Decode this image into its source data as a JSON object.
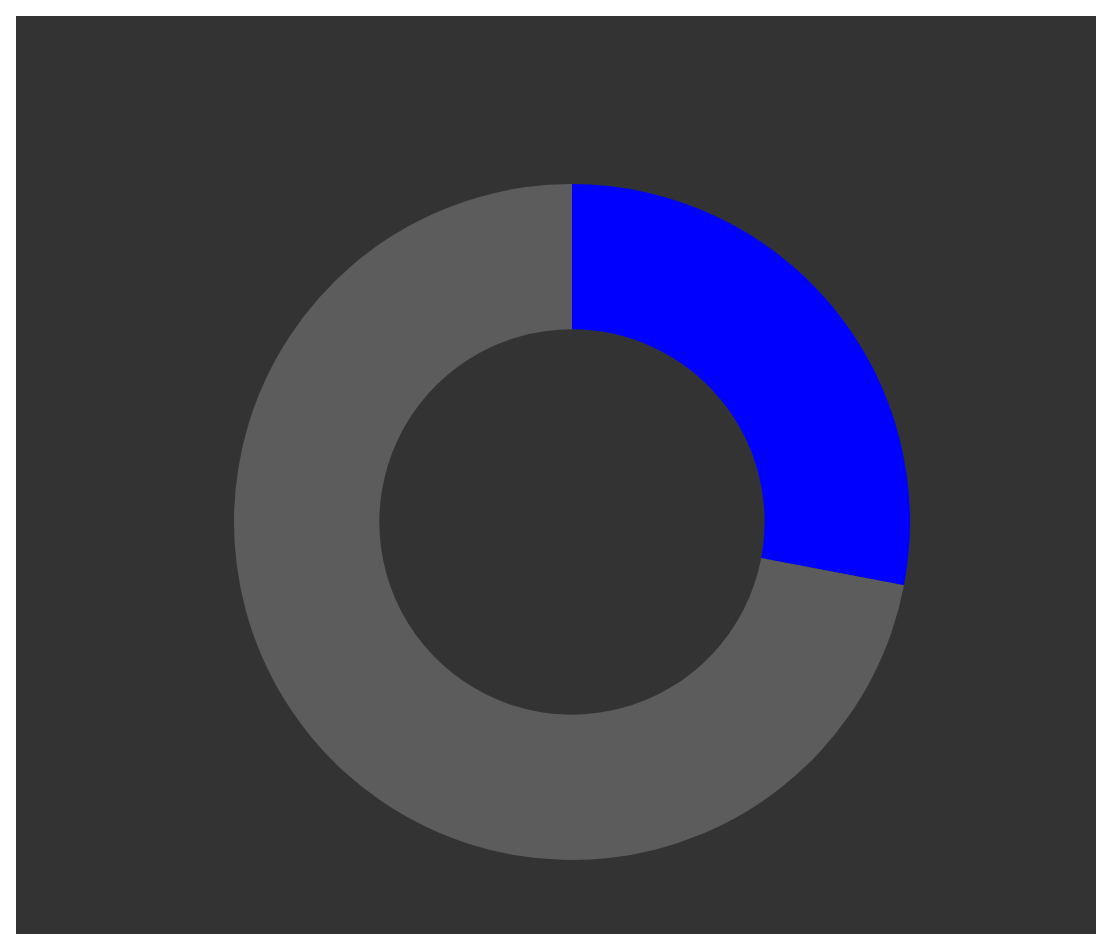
{
  "chart_data": {
    "type": "donut",
    "categories": [
      null,
      null
    ],
    "values": [
      28,
      72
    ],
    "colors": [
      "#0000ff",
      "#5c5c5c"
    ],
    "legend": false
  }
}
